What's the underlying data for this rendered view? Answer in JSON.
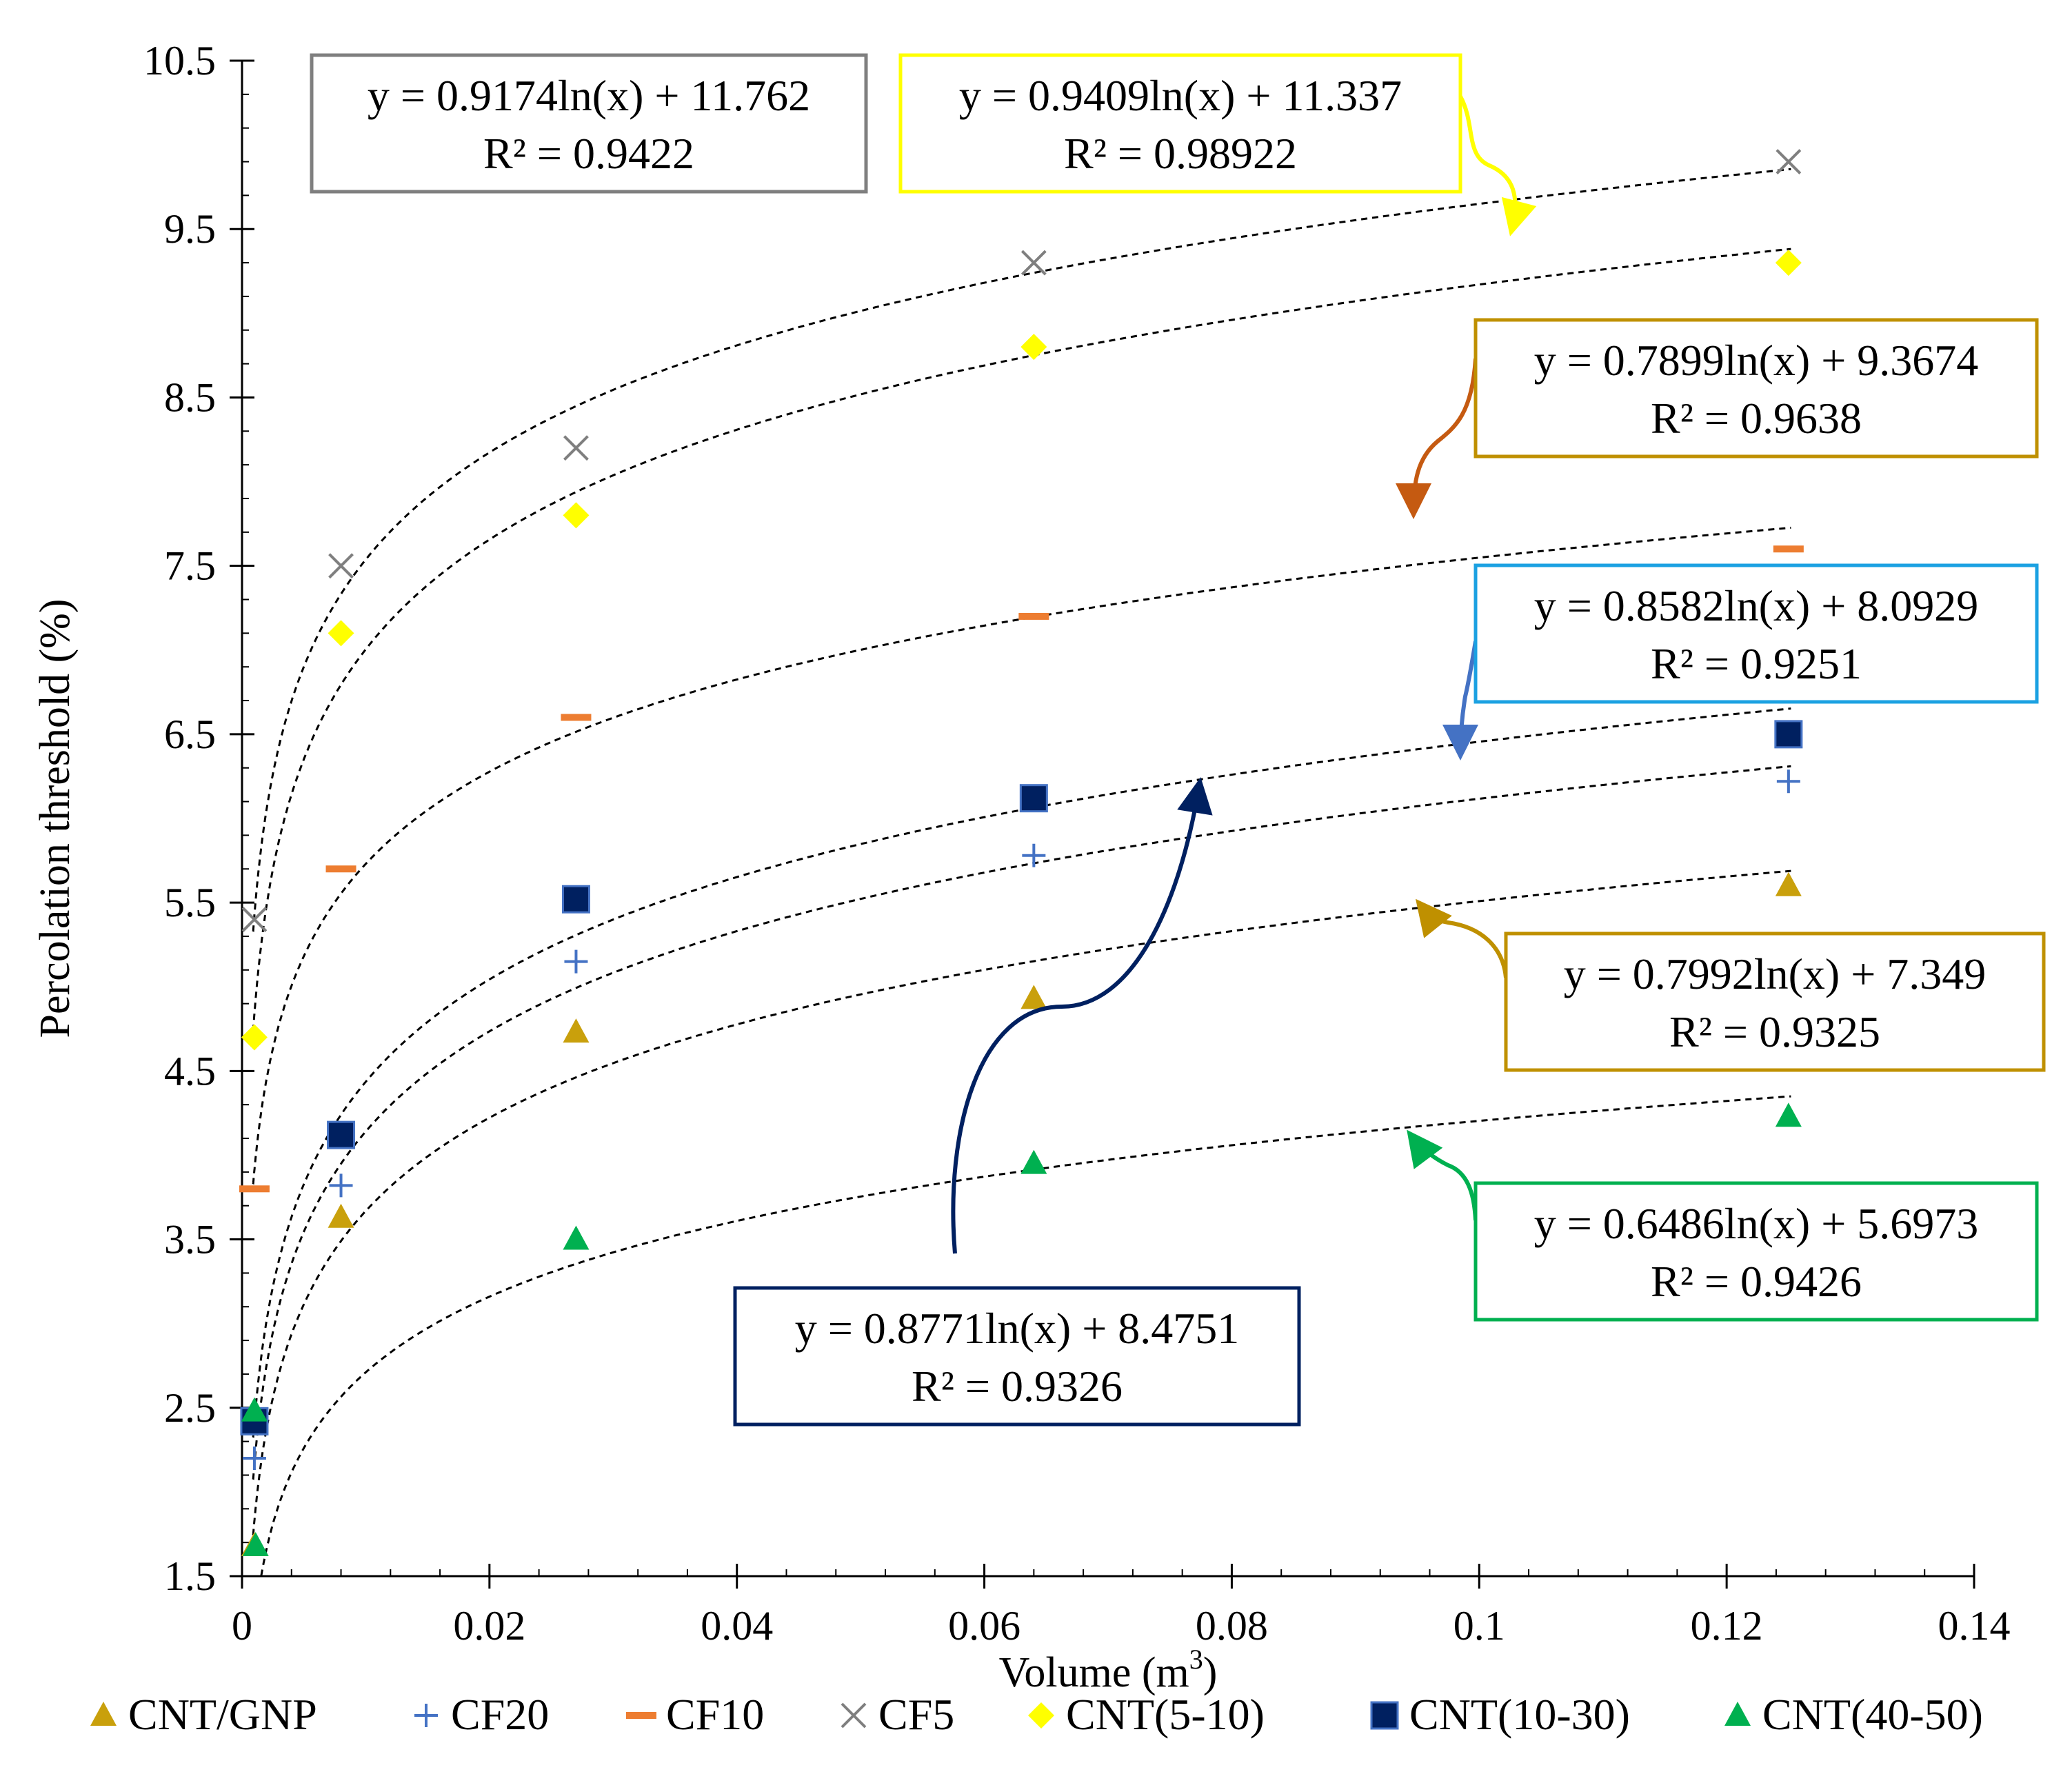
{
  "chart_data": {
    "type": "scatter",
    "xlabel": "Volume (m",
    "xlabel_sup": "3",
    "xlabel_end": ")",
    "ylabel": "Percolation threshold (%)",
    "xlim": [
      0,
      0.14
    ],
    "ylim": [
      1.5,
      10.5
    ],
    "x_ticks": [
      "0",
      "0.02",
      "0.04",
      "0.06",
      "0.08",
      "0.1",
      "0.12",
      "0.14"
    ],
    "y_ticks": [
      "1.5",
      "2.5",
      "3.5",
      "4.5",
      "5.5",
      "6.5",
      "7.5",
      "8.5",
      "9.5",
      "10.5"
    ],
    "x": [
      0.001,
      0.008,
      0.027,
      0.064,
      0.125
    ],
    "series": [
      {
        "name": "CNT/GNP",
        "marker": "triangle",
        "color": "#C9A00C",
        "values": [
          1.68,
          3.63,
          4.73,
          4.93,
          5.6
        ]
      },
      {
        "name": "CF20",
        "marker": "plus",
        "color": "#4472C4",
        "values": [
          2.2,
          3.82,
          5.15,
          5.78,
          6.22
        ]
      },
      {
        "name": "CF10",
        "marker": "dash",
        "color": "#ED7D31",
        "values": [
          3.8,
          5.7,
          6.6,
          7.2,
          7.6
        ]
      },
      {
        "name": "CF5",
        "marker": "cross",
        "color": "#7F7F7F",
        "values": [
          5.4,
          7.5,
          8.2,
          9.3,
          9.9
        ]
      },
      {
        "name": "CNT(5-10)",
        "marker": "diamond",
        "color": "#FFFF00",
        "values": [
          4.7,
          7.1,
          7.8,
          8.8,
          9.3
        ]
      },
      {
        "name": "CNT(10-30)",
        "marker": "square",
        "color": "#002060",
        "values": [
          2.42,
          4.12,
          5.52,
          6.12,
          6.5
        ]
      },
      {
        "name": "CNT(40-50)",
        "marker": "triangle",
        "color": "#00B050",
        "values": [
          2.48,
          null,
          3.5,
          3.95,
          4.23
        ]
      }
    ],
    "extra_points": [
      {
        "series": "CNT(40-50)",
        "x": 0.0011,
        "y": 1.68
      }
    ],
    "trendlines": [
      {
        "series": "CF5",
        "a": 0.9174,
        "b": 11.762,
        "equation": "y = 0.9174ln(x) + 11.762",
        "r2": "R² = 0.9422",
        "box_color": "#7F7F7F"
      },
      {
        "series": "CNT(5-10)",
        "a": 0.9409,
        "b": 11.337,
        "equation": "y = 0.9409ln(x) + 11.337",
        "r2": "R² = 0.98922",
        "box_color": "#FFFF00"
      },
      {
        "series": "CF10",
        "a": 0.7899,
        "b": 9.3674,
        "equation": "y = 0.7899ln(x) + 9.3674",
        "r2": "R² = 0.9638",
        "box_color": "#BF9000"
      },
      {
        "series": "CF20",
        "a": 0.8582,
        "b": 8.0929,
        "equation": "y = 0.8582ln(x) + 8.0929",
        "r2": "R² = 0.9251",
        "box_color": "#1BA1E2"
      },
      {
        "series": "CNT(10-30)",
        "a": 0.8771,
        "b": 8.4751,
        "equation": "y = 0.8771ln(x) + 8.4751",
        "r2": "R² = 0.9326",
        "box_color": "#002060"
      },
      {
        "series": "CNT/GNP",
        "a": 0.7992,
        "b": 7.349,
        "equation": "y = 0.7992ln(x) + 7.349",
        "r2": "R² = 0.9325",
        "box_color": "#BF9000"
      },
      {
        "series": "CNT(40-50)",
        "a": 0.6486,
        "b": 5.6973,
        "equation": "y = 0.6486ln(x) + 5.6973",
        "r2": "R² = 0.9426",
        "box_color": "#00B050"
      }
    ],
    "legend": [
      "CNT/GNP",
      "CF20",
      "CF10",
      "CF5",
      "CNT(5-10)",
      "CNT(10-30)",
      "CNT(40-50)"
    ],
    "legend_position": "bottom",
    "grid": false
  }
}
